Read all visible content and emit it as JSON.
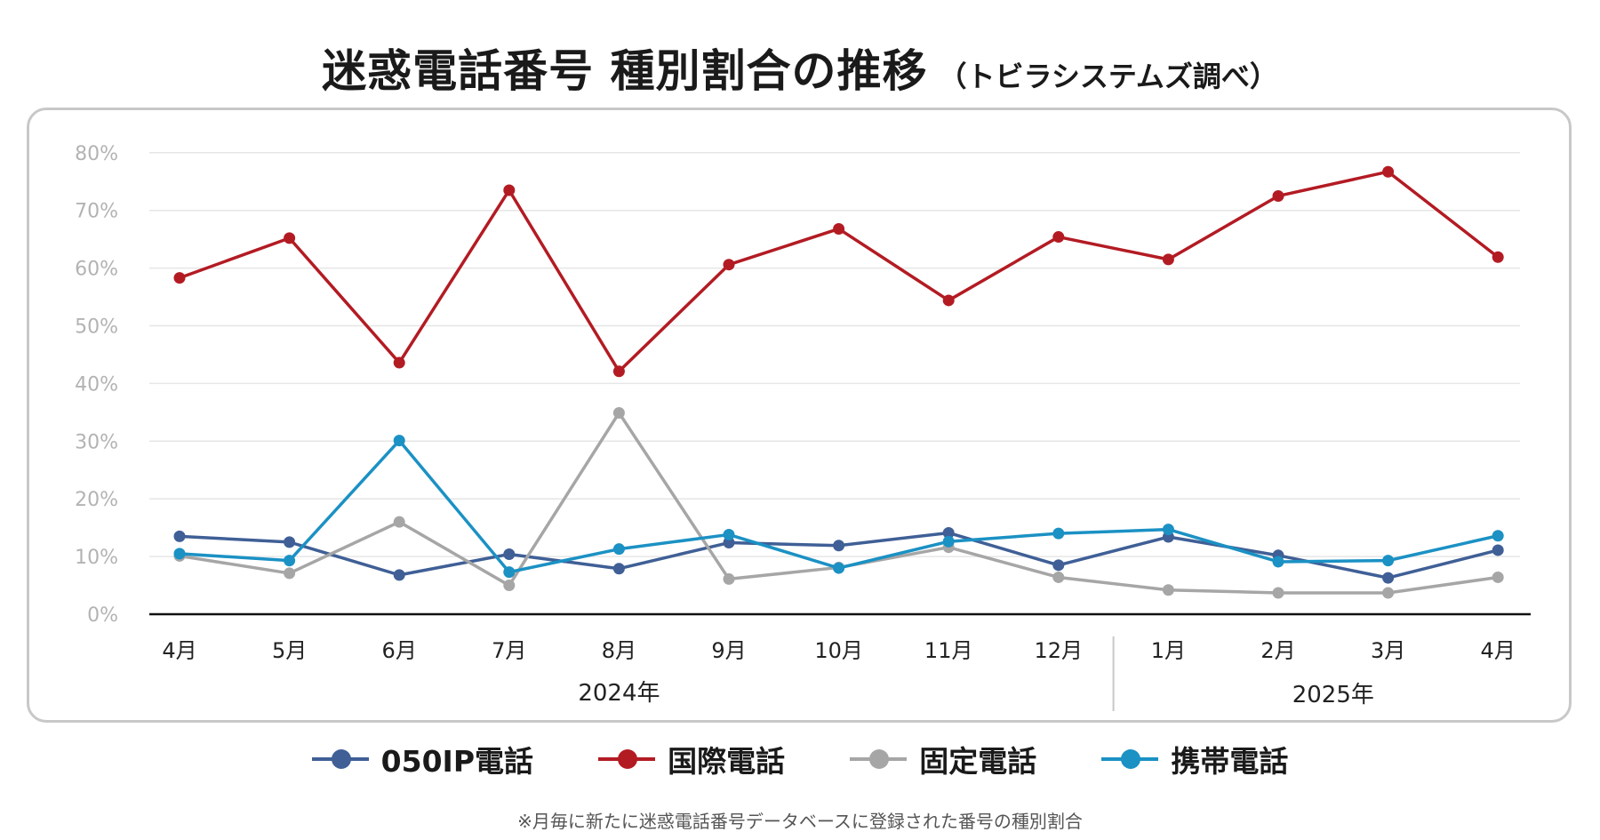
{
  "title": {
    "main": "迷惑電話番号 種別割合の推移",
    "sub": "（トビラシステムズ調べ）"
  },
  "footnote": "※月毎に新たに迷惑電話番号データベースに登録された番号の種別割合",
  "chart_data": {
    "type": "line",
    "categories": [
      "4月",
      "5月",
      "6月",
      "7月",
      "8月",
      "9月",
      "10月",
      "11月",
      "12月",
      "1月",
      "2月",
      "3月",
      "4月"
    ],
    "year_labels": [
      "2024年",
      "2025年"
    ],
    "y_ticks": [
      "0%",
      "10%",
      "20%",
      "30%",
      "40%",
      "50%",
      "60%",
      "70%",
      "80%"
    ],
    "ylim": [
      0,
      80
    ],
    "grid": true,
    "legend_position": "bottom",
    "series": [
      {
        "name": "050IP電話",
        "color": "#3f5f96",
        "values": [
          13.5,
          12.5,
          6.8,
          10.4,
          7.9,
          12.4,
          11.9,
          14.1,
          8.5,
          13.4,
          10.2,
          6.3,
          11.1
        ]
      },
      {
        "name": "国際電話",
        "color": "#b31b23",
        "values": [
          58.3,
          65.2,
          43.6,
          73.5,
          42.1,
          60.6,
          66.8,
          54.4,
          65.4,
          61.5,
          72.5,
          76.7,
          61.9
        ]
      },
      {
        "name": "固定電話",
        "color": "#a6a6a6",
        "values": [
          10.1,
          7.1,
          16.0,
          5.0,
          34.9,
          6.1,
          8.1,
          11.6,
          6.4,
          4.2,
          3.7,
          3.7,
          6.4
        ]
      },
      {
        "name": "携帯電話",
        "color": "#1b91c4",
        "values": [
          10.5,
          9.3,
          30.1,
          7.3,
          11.3,
          13.8,
          8.0,
          12.6,
          14.0,
          14.7,
          9.1,
          9.3,
          13.6
        ]
      }
    ]
  }
}
